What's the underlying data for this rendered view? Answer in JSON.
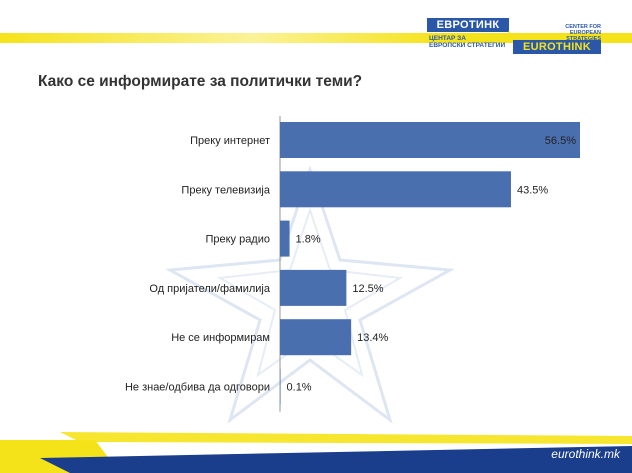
{
  "logo": {
    "top_text": "ЕВРОТИНК",
    "sub_text_1": "ЦЕНТАР ЗА",
    "sub_text_2": "ЕВРОПСКИ СТРАТЕГИИ",
    "right_text_1": "CENTER FOR",
    "right_text_2": "EUROPEAN STRATEGIES",
    "bottom_text": "EUROTHINK"
  },
  "footer": {
    "url": "eurothink.mk"
  },
  "colors": {
    "bar": "#4a6fae",
    "accent_yellow": "#f5e31a",
    "brand_blue": "#2a57a8",
    "navy": "#1a3e8c"
  },
  "chart_data": {
    "type": "bar",
    "orientation": "horizontal",
    "title": "Како се информирате за политички теми?",
    "categories": [
      "Преку интернет",
      "Преку телевизија",
      "Преку радио",
      "Од пријатели/фамилија",
      "Не се информирам",
      "Не знае/одбива да одговори"
    ],
    "values": [
      56.5,
      43.5,
      1.8,
      12.5,
      13.4,
      0.1
    ],
    "value_labels": [
      "56.5%",
      "43.5%",
      "1.8%",
      "12.5%",
      "13.4%",
      "0.1%"
    ],
    "xlim": [
      0,
      56.5
    ],
    "grid": false,
    "legend": "none"
  }
}
